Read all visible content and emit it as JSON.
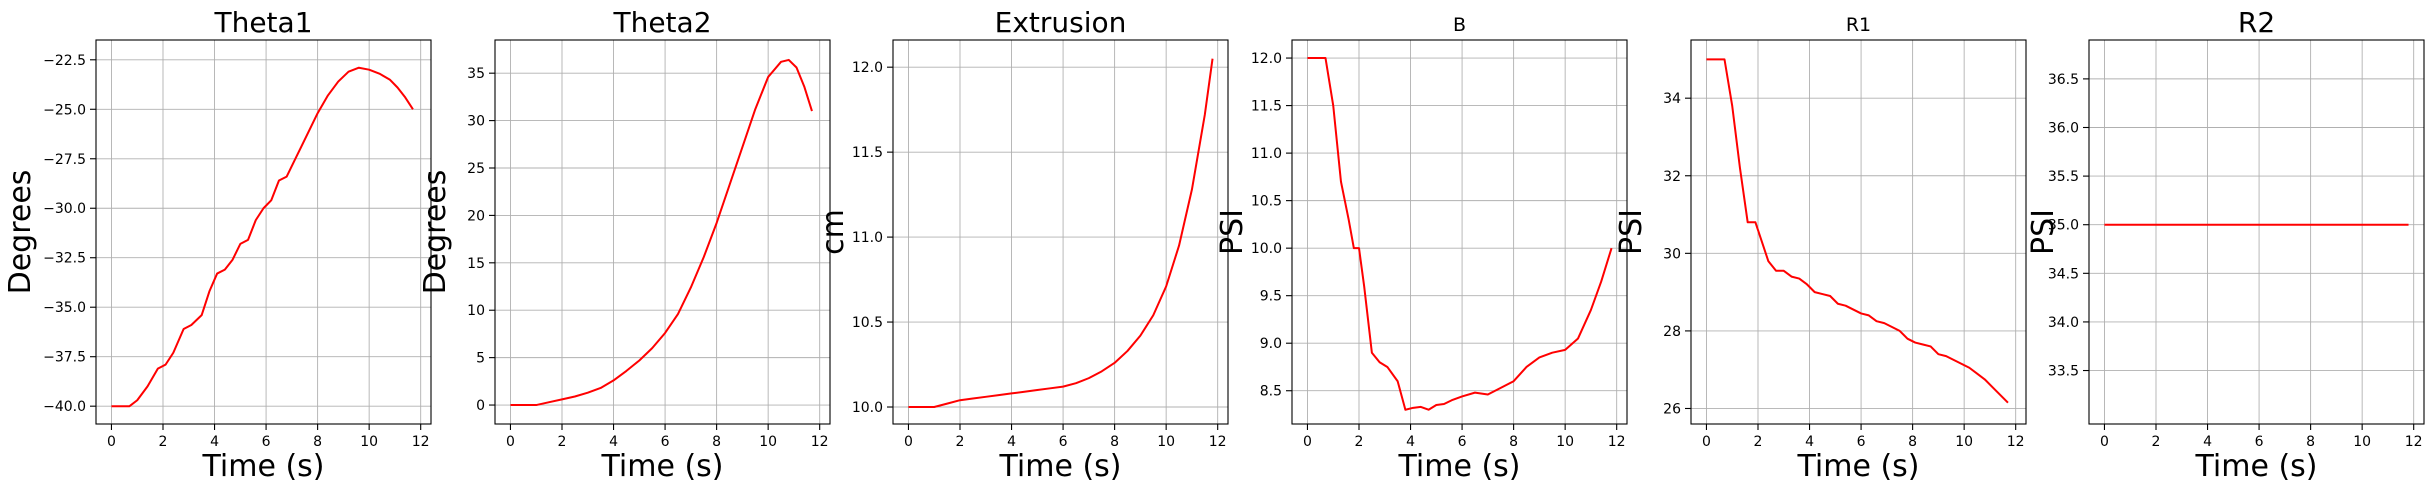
{
  "figure": {
    "background": "#ffffff",
    "line_color": "#ff0000"
  },
  "chart_data": [
    {
      "type": "line",
      "title": "Theta1",
      "xlabel": "Time (s)",
      "ylabel": "Degrees",
      "xlim": [
        -0.6,
        12.4
      ],
      "ylim": [
        -40.9,
        -21.5
      ],
      "xticks": [
        0,
        2,
        4,
        6,
        8,
        10,
        12
      ],
      "yticks": [
        -40.0,
        -37.5,
        -35.0,
        -32.5,
        -30.0,
        -27.5,
        -25.0,
        -22.5
      ],
      "ytick_labels": [
        "−40.0",
        "−37.5",
        "−35.0",
        "−32.5",
        "−30.0",
        "−27.5",
        "−25.0",
        "−22.5"
      ],
      "grid": true,
      "series": [
        {
          "color": "#ff0000",
          "x": [
            0.0,
            0.7,
            1.0,
            1.4,
            1.8,
            2.1,
            2.4,
            2.8,
            3.1,
            3.5,
            3.8,
            4.1,
            4.4,
            4.7,
            5.0,
            5.3,
            5.6,
            5.9,
            6.2,
            6.5,
            6.8,
            7.1,
            7.4,
            7.7,
            8.0,
            8.4,
            8.8,
            9.2,
            9.6,
            10.0,
            10.4,
            10.8,
            11.1,
            11.4,
            11.7
          ],
          "y": [
            -40.0,
            -40.0,
            -39.7,
            -39.0,
            -38.1,
            -37.9,
            -37.3,
            -36.1,
            -35.9,
            -35.4,
            -34.2,
            -33.3,
            -33.1,
            -32.6,
            -31.8,
            -31.6,
            -30.6,
            -30.0,
            -29.6,
            -28.6,
            -28.4,
            -27.6,
            -26.8,
            -26.0,
            -25.2,
            -24.3,
            -23.6,
            -23.1,
            -22.9,
            -23.0,
            -23.2,
            -23.5,
            -23.9,
            -24.4,
            -25.0
          ]
        }
      ]
    },
    {
      "type": "line",
      "title": "Theta2",
      "xlabel": "Time (s)",
      "ylabel": "Degrees",
      "xlim": [
        -0.6,
        12.4
      ],
      "ylim": [
        -2.0,
        38.5
      ],
      "xticks": [
        0,
        2,
        4,
        6,
        8,
        10,
        12
      ],
      "yticks": [
        0,
        5,
        10,
        15,
        20,
        25,
        30,
        35
      ],
      "ytick_labels": [
        "0",
        "5",
        "10",
        "15",
        "20",
        "25",
        "30",
        "35"
      ],
      "grid": true,
      "series": [
        {
          "color": "#ff0000",
          "x": [
            0.0,
            0.5,
            1.0,
            1.5,
            2.0,
            2.5,
            3.0,
            3.5,
            4.0,
            4.5,
            5.0,
            5.5,
            6.0,
            6.5,
            7.0,
            7.5,
            8.0,
            8.5,
            9.0,
            9.5,
            10.0,
            10.5,
            10.8,
            11.1,
            11.4,
            11.7
          ],
          "y": [
            0.0,
            0.0,
            0.0,
            0.3,
            0.6,
            0.9,
            1.3,
            1.8,
            2.6,
            3.6,
            4.7,
            6.0,
            7.6,
            9.6,
            12.4,
            15.6,
            19.2,
            23.2,
            27.2,
            31.2,
            34.6,
            36.2,
            36.4,
            35.6,
            33.6,
            31.0
          ]
        }
      ]
    },
    {
      "type": "line",
      "title": "Extrusion",
      "xlabel": "Time (s)",
      "ylabel": "cm",
      "xlim": [
        -0.6,
        12.4
      ],
      "ylim": [
        9.9,
        12.16
      ],
      "xticks": [
        0,
        2,
        4,
        6,
        8,
        10,
        12
      ],
      "yticks": [
        10.0,
        10.5,
        11.0,
        11.5,
        12.0
      ],
      "ytick_labels": [
        "10.0",
        "10.5",
        "11.0",
        "11.5",
        "12.0"
      ],
      "grid": true,
      "series": [
        {
          "color": "#ff0000",
          "x": [
            0.0,
            1.0,
            1.5,
            2.0,
            2.5,
            3.0,
            3.5,
            4.0,
            4.5,
            5.0,
            5.5,
            6.0,
            6.5,
            7.0,
            7.5,
            8.0,
            8.5,
            9.0,
            9.5,
            10.0,
            10.5,
            11.0,
            11.5,
            11.8
          ],
          "y": [
            10.0,
            10.0,
            10.02,
            10.04,
            10.05,
            10.06,
            10.07,
            10.08,
            10.09,
            10.1,
            10.11,
            10.12,
            10.14,
            10.17,
            10.21,
            10.26,
            10.33,
            10.42,
            10.54,
            10.71,
            10.95,
            11.28,
            11.72,
            12.05
          ]
        }
      ]
    },
    {
      "type": "line",
      "title": "B",
      "xlabel": "Time (s)",
      "ylabel": "PSI",
      "xlim": [
        -0.6,
        12.4
      ],
      "ylim": [
        8.15,
        12.19
      ],
      "xticks": [
        0,
        2,
        4,
        6,
        8,
        10,
        12
      ],
      "yticks": [
        8.5,
        9.0,
        9.5,
        10.0,
        10.5,
        11.0,
        11.5,
        12.0
      ],
      "ytick_labels": [
        "8.5",
        "9.0",
        "9.5",
        "10.0",
        "10.5",
        "11.0",
        "11.5",
        "12.0"
      ],
      "grid": true,
      "series": [
        {
          "color": "#ff0000",
          "x": [
            0.0,
            0.4,
            0.7,
            1.0,
            1.3,
            1.6,
            1.8,
            2.0,
            2.2,
            2.5,
            2.8,
            3.1,
            3.5,
            3.8,
            4.1,
            4.4,
            4.7,
            5.0,
            5.3,
            5.6,
            6.0,
            6.5,
            7.0,
            7.5,
            8.0,
            8.5,
            9.0,
            9.5,
            10.0,
            10.5,
            11.0,
            11.4,
            11.8
          ],
          "y": [
            12.0,
            12.0,
            12.0,
            11.5,
            10.7,
            10.3,
            10.0,
            10.0,
            9.6,
            8.9,
            8.8,
            8.75,
            8.6,
            8.3,
            8.32,
            8.33,
            8.3,
            8.35,
            8.36,
            8.4,
            8.44,
            8.48,
            8.46,
            8.53,
            8.6,
            8.75,
            8.85,
            8.9,
            8.93,
            9.05,
            9.35,
            9.65,
            10.0
          ]
        }
      ]
    },
    {
      "type": "line",
      "title": "R1",
      "xlabel": "Time (s)",
      "ylabel": "PSI",
      "xlim": [
        -0.6,
        12.4
      ],
      "ylim": [
        25.6,
        35.5
      ],
      "xticks": [
        0,
        2,
        4,
        6,
        8,
        10,
        12
      ],
      "yticks": [
        26,
        28,
        30,
        32,
        34
      ],
      "ytick_labels": [
        "26",
        "28",
        "30",
        "32",
        "34"
      ],
      "grid": true,
      "series": [
        {
          "color": "#ff0000",
          "x": [
            0.0,
            0.4,
            0.7,
            1.0,
            1.3,
            1.6,
            1.9,
            2.1,
            2.4,
            2.7,
            3.0,
            3.3,
            3.6,
            3.9,
            4.2,
            4.5,
            4.8,
            5.1,
            5.4,
            5.7,
            6.0,
            6.3,
            6.6,
            6.9,
            7.2,
            7.5,
            7.8,
            8.1,
            8.4,
            8.7,
            9.0,
            9.3,
            9.6,
            9.9,
            10.2,
            10.5,
            10.8,
            11.1,
            11.4,
            11.7
          ],
          "y": [
            35.0,
            35.0,
            35.0,
            33.8,
            32.2,
            30.8,
            30.8,
            30.4,
            29.8,
            29.55,
            29.55,
            29.4,
            29.35,
            29.2,
            29.0,
            28.95,
            28.9,
            28.7,
            28.65,
            28.55,
            28.45,
            28.4,
            28.25,
            28.2,
            28.1,
            28.0,
            27.8,
            27.7,
            27.65,
            27.6,
            27.4,
            27.35,
            27.25,
            27.15,
            27.05,
            26.9,
            26.75,
            26.55,
            26.35,
            26.15
          ]
        }
      ]
    },
    {
      "type": "line",
      "title": "R2",
      "xlabel": "Time (s)",
      "ylabel": "PSI",
      "xlim": [
        -0.6,
        12.4
      ],
      "ylim": [
        32.95,
        36.9
      ],
      "xticks": [
        0,
        2,
        4,
        6,
        8,
        10,
        12
      ],
      "yticks": [
        33.5,
        34.0,
        34.5,
        35.0,
        35.5,
        36.0,
        36.5
      ],
      "ytick_labels": [
        "33.5",
        "34.0",
        "34.5",
        "35.0",
        "35.5",
        "36.0",
        "36.5"
      ],
      "grid": true,
      "series": [
        {
          "color": "#ff0000",
          "x": [
            0.0,
            11.8
          ],
          "y": [
            35.0,
            35.0
          ]
        }
      ]
    }
  ]
}
